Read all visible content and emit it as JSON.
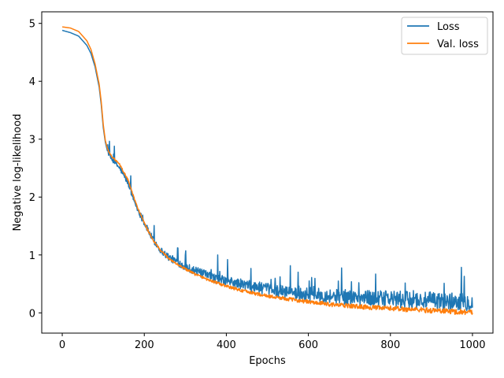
{
  "chart_data": {
    "type": "line",
    "title": "",
    "xlabel": "Epochs",
    "ylabel": "Negative log-likelihood",
    "xlim": [
      -50,
      1050
    ],
    "ylim": [
      -0.35,
      5.2
    ],
    "xticks": [
      0,
      200,
      400,
      600,
      800,
      1000
    ],
    "yticks": [
      0,
      1,
      2,
      3,
      4,
      5
    ],
    "grid": false,
    "legend": "top-right",
    "series": [
      {
        "name": "Loss",
        "color": "#1f77b4",
        "noise": "high",
        "x": [
          0,
          20,
          40,
          60,
          70,
          80,
          90,
          95,
          100,
          105,
          110,
          115,
          120,
          140,
          160,
          180,
          200,
          220,
          240,
          260,
          280,
          300,
          320,
          340,
          360,
          380,
          400,
          420,
          440,
          460,
          480,
          500,
          520,
          540,
          560,
          580,
          600,
          620,
          640,
          660,
          680,
          700,
          720,
          740,
          760,
          780,
          800,
          820,
          840,
          860,
          880,
          900,
          920,
          940,
          960,
          980,
          1000
        ],
        "y": [
          4.88,
          4.84,
          4.78,
          4.62,
          4.48,
          4.25,
          3.9,
          3.6,
          3.2,
          2.95,
          2.8,
          2.72,
          2.66,
          2.5,
          2.25,
          1.85,
          1.55,
          1.28,
          1.08,
          0.96,
          0.88,
          0.8,
          0.74,
          0.68,
          0.63,
          0.58,
          0.55,
          0.52,
          0.49,
          0.46,
          0.43,
          0.41,
          0.39,
          0.37,
          0.35,
          0.33,
          0.32,
          0.31,
          0.3,
          0.29,
          0.28,
          0.27,
          0.26,
          0.26,
          0.25,
          0.24,
          0.24,
          0.23,
          0.22,
          0.22,
          0.21,
          0.21,
          0.2,
          0.2,
          0.2,
          0.19,
          0.18
        ]
      },
      {
        "name": "Val. loss",
        "color": "#ff7f0e",
        "noise": "low",
        "x": [
          0,
          20,
          40,
          60,
          70,
          80,
          90,
          95,
          100,
          105,
          110,
          115,
          120,
          140,
          160,
          180,
          200,
          220,
          240,
          260,
          280,
          300,
          320,
          340,
          360,
          380,
          400,
          420,
          440,
          460,
          480,
          500,
          520,
          540,
          560,
          580,
          600,
          620,
          640,
          660,
          680,
          700,
          720,
          740,
          760,
          780,
          800,
          820,
          840,
          860,
          880,
          900,
          920,
          940,
          960,
          980,
          1000
        ],
        "y": [
          4.94,
          4.92,
          4.86,
          4.7,
          4.55,
          4.3,
          3.95,
          3.65,
          3.25,
          2.98,
          2.84,
          2.76,
          2.71,
          2.56,
          2.3,
          1.88,
          1.55,
          1.27,
          1.07,
          0.94,
          0.84,
          0.76,
          0.68,
          0.62,
          0.56,
          0.51,
          0.46,
          0.42,
          0.38,
          0.35,
          0.32,
          0.29,
          0.27,
          0.25,
          0.23,
          0.21,
          0.19,
          0.17,
          0.16,
          0.14,
          0.13,
          0.12,
          0.11,
          0.1,
          0.09,
          0.08,
          0.08,
          0.07,
          0.06,
          0.06,
          0.05,
          0.04,
          0.04,
          0.03,
          0.02,
          0.02,
          0.01
        ]
      }
    ]
  }
}
